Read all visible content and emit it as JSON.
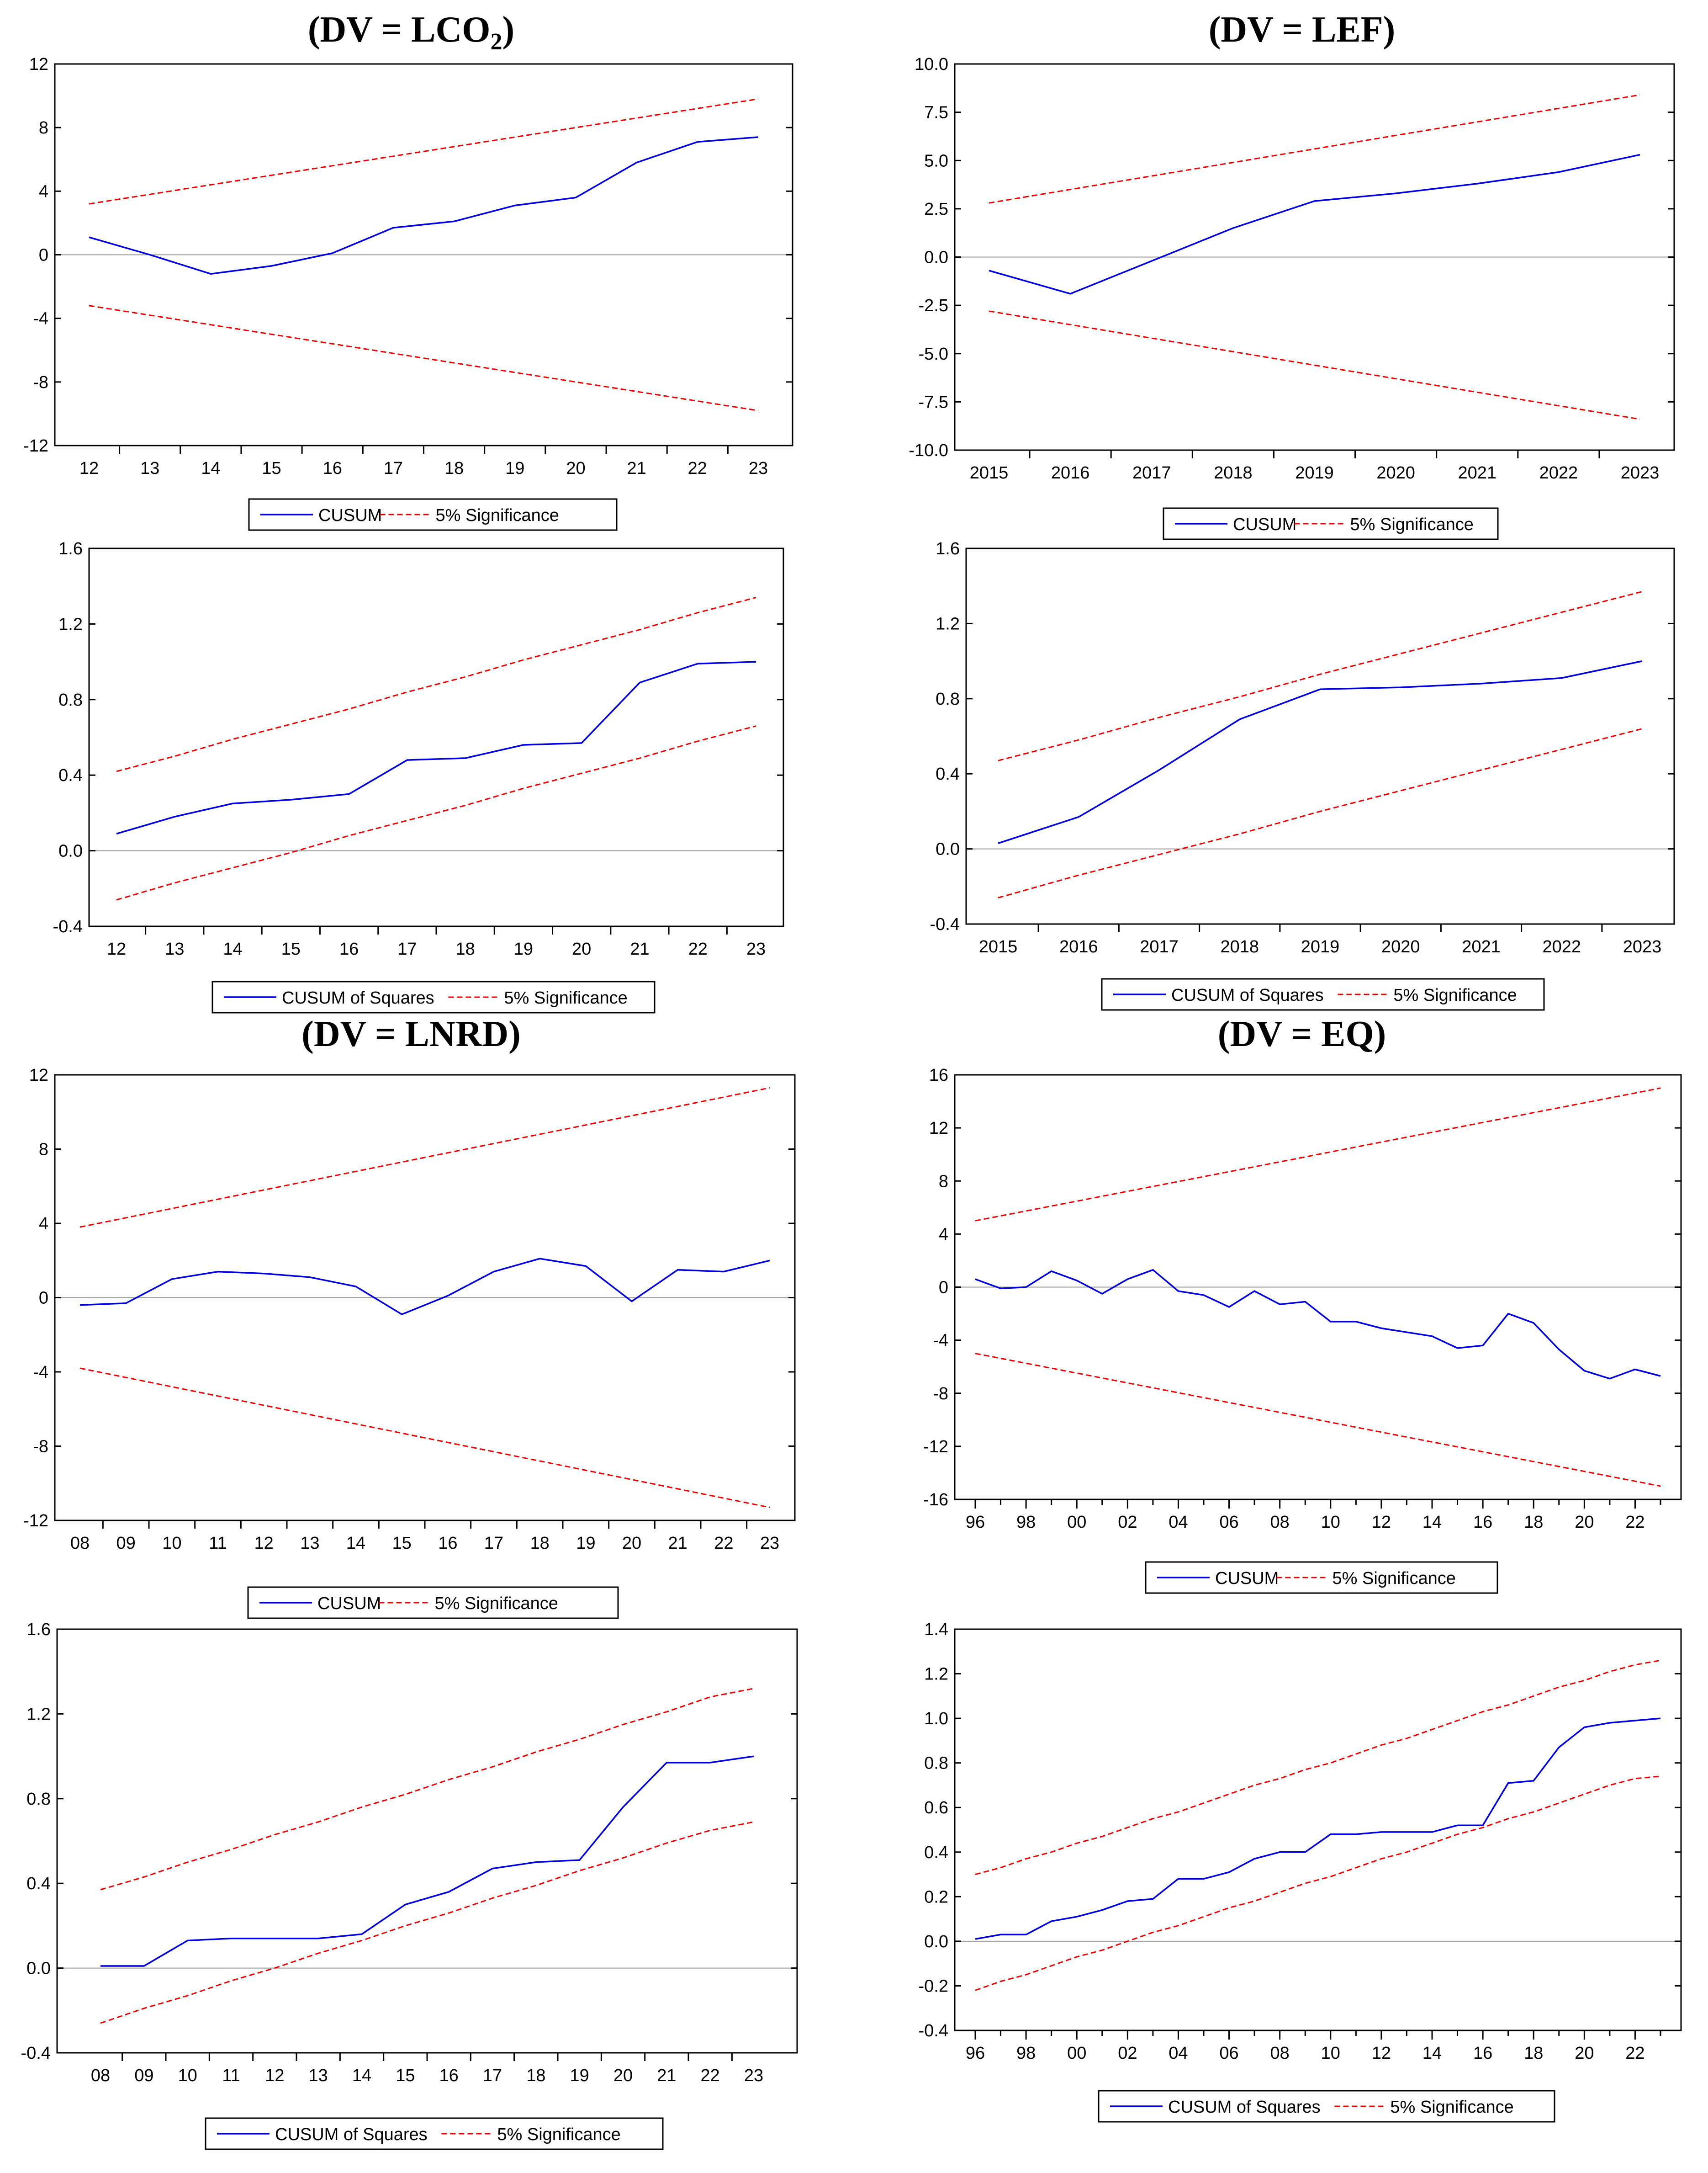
{
  "titles": {
    "t1_prefix": "(DV = LCO",
    "t1_sub": "2",
    "t1_suffix": ")",
    "t2": "(DV = LEF)",
    "t3": "(DV = LNRD)",
    "t4": "(DV = EQ)"
  },
  "colors": {
    "cusum": "#0000dd",
    "band": "#ee0000",
    "axis": "#000000",
    "zero": "#999999"
  },
  "chart_data": [
    {
      "id": "lco2-cusum",
      "type": "line",
      "title": "(DV = LCO2)",
      "categories": [
        "12",
        "13",
        "14",
        "15",
        "16",
        "17",
        "18",
        "19",
        "20",
        "21",
        "22",
        "23"
      ],
      "ylim": [
        -12,
        12
      ],
      "yticks": [
        "12",
        "8",
        "4",
        "0",
        "-4",
        "-8",
        "-12"
      ],
      "ytick_values": [
        12,
        8,
        4,
        0,
        -4,
        -8,
        -12
      ],
      "series": [
        {
          "name": "CUSUM",
          "values": [
            1.1,
            0.0,
            -1.2,
            -0.7,
            0.1,
            1.7,
            2.1,
            3.1,
            3.6,
            5.8,
            7.1,
            7.4
          ]
        },
        {
          "name": "5% Significance",
          "values": [
            3.2,
            3.8,
            4.4,
            5.0,
            5.6,
            6.2,
            6.8,
            7.4,
            8.0,
            8.6,
            9.2,
            9.8
          ]
        },
        {
          "name": "5% Significance",
          "values": [
            -3.2,
            -3.8,
            -4.4,
            -5.0,
            -5.6,
            -6.2,
            -6.8,
            -7.4,
            -8.0,
            -8.6,
            -9.2,
            -9.8
          ]
        }
      ],
      "legend": [
        "CUSUM",
        "5% Significance"
      ]
    },
    {
      "id": "lef-cusum",
      "type": "line",
      "title": "(DV = LEF)",
      "categories": [
        "2015",
        "2016",
        "2017",
        "2018",
        "2019",
        "2020",
        "2021",
        "2022",
        "2023"
      ],
      "ylim": [
        -10,
        10
      ],
      "yticks": [
        "10.0",
        "7.5",
        "5.0",
        "2.5",
        "0.0",
        "-2.5",
        "-5.0",
        "-7.5",
        "-10.0"
      ],
      "ytick_values": [
        10,
        7.5,
        5,
        2.5,
        0,
        -2.5,
        -5,
        -7.5,
        -10
      ],
      "series": [
        {
          "name": "CUSUM",
          "values": [
            -0.7,
            -1.9,
            -0.2,
            1.5,
            2.9,
            3.3,
            3.8,
            4.4,
            5.3
          ]
        },
        {
          "name": "5% Significance",
          "values": [
            2.8,
            3.5,
            4.2,
            4.9,
            5.6,
            6.3,
            7.0,
            7.7,
            8.4
          ]
        },
        {
          "name": "5% Significance",
          "values": [
            -2.8,
            -3.5,
            -4.2,
            -4.9,
            -5.6,
            -6.3,
            -7.0,
            -7.7,
            -8.4
          ]
        }
      ],
      "legend": [
        "CUSUM",
        "5% Significance"
      ]
    },
    {
      "id": "lco2-cusumsq",
      "type": "line",
      "categories": [
        "12",
        "13",
        "14",
        "15",
        "16",
        "17",
        "18",
        "19",
        "20",
        "21",
        "22",
        "23"
      ],
      "ylim": [
        -0.4,
        1.6
      ],
      "yticks": [
        "1.6",
        "1.2",
        "0.8",
        "0.4",
        "0.0",
        "-0.4"
      ],
      "ytick_values": [
        1.6,
        1.2,
        0.8,
        0.4,
        0,
        -0.4
      ],
      "series": [
        {
          "name": "CUSUM of Squares",
          "values": [
            0.09,
            0.18,
            0.25,
            0.27,
            0.3,
            0.48,
            0.49,
            0.56,
            0.57,
            0.89,
            0.99,
            1.0
          ]
        },
        {
          "name": "5% Significance",
          "values": [
            0.42,
            0.5,
            0.59,
            0.67,
            0.75,
            0.84,
            0.92,
            1.01,
            1.09,
            1.17,
            1.26,
            1.34
          ]
        },
        {
          "name": "5% Significance",
          "values": [
            -0.26,
            -0.17,
            -0.09,
            -0.01,
            0.08,
            0.16,
            0.24,
            0.33,
            0.41,
            0.49,
            0.58,
            0.66
          ]
        }
      ],
      "legend": [
        "CUSUM of Squares",
        "5% Significance"
      ]
    },
    {
      "id": "lef-cusumsq",
      "type": "line",
      "categories": [
        "2015",
        "2016",
        "2017",
        "2018",
        "2019",
        "2020",
        "2021",
        "2022",
        "2023"
      ],
      "ylim": [
        -0.4,
        1.6
      ],
      "yticks": [
        "1.6",
        "1.2",
        "0.8",
        "0.4",
        "0.0",
        "-0.4"
      ],
      "ytick_values": [
        1.6,
        1.2,
        0.8,
        0.4,
        0,
        -0.4
      ],
      "series": [
        {
          "name": "CUSUM of Squares",
          "values": [
            0.03,
            0.17,
            0.42,
            0.69,
            0.85,
            0.86,
            0.88,
            0.91,
            1.0
          ]
        },
        {
          "name": "5% Significance",
          "values": [
            0.47,
            0.58,
            0.7,
            0.81,
            0.93,
            1.04,
            1.15,
            1.26,
            1.37
          ]
        },
        {
          "name": "5% Significance",
          "values": [
            -0.26,
            -0.14,
            -0.03,
            0.08,
            0.2,
            0.31,
            0.42,
            0.53,
            0.64
          ]
        }
      ],
      "legend": [
        "CUSUM of Squares",
        "5% Significance"
      ]
    },
    {
      "id": "lnrd-cusum",
      "type": "line",
      "title": "(DV = LNRD)",
      "categories": [
        "08",
        "09",
        "10",
        "11",
        "12",
        "13",
        "14",
        "15",
        "16",
        "17",
        "18",
        "19",
        "20",
        "21",
        "22",
        "23"
      ],
      "ylim": [
        -12,
        12
      ],
      "yticks": [
        "12",
        "8",
        "4",
        "0",
        "-4",
        "-8",
        "-12"
      ],
      "ytick_values": [
        12,
        8,
        4,
        0,
        -4,
        -8,
        -12
      ],
      "series": [
        {
          "name": "CUSUM",
          "values": [
            -0.4,
            -0.3,
            1.0,
            1.4,
            1.3,
            1.1,
            0.6,
            -0.9,
            0.1,
            1.4,
            2.1,
            1.7,
            -0.2,
            1.5,
            1.4,
            2.0
          ]
        },
        {
          "name": "5% Significance",
          "values": [
            3.8,
            4.3,
            4.8,
            5.3,
            5.8,
            6.3,
            6.8,
            7.3,
            7.8,
            8.3,
            8.8,
            9.3,
            9.8,
            10.3,
            10.8,
            11.3
          ]
        },
        {
          "name": "5% Significance",
          "values": [
            -3.8,
            -4.3,
            -4.8,
            -5.3,
            -5.8,
            -6.3,
            -6.8,
            -7.3,
            -7.8,
            -8.3,
            -8.8,
            -9.3,
            -9.8,
            -10.3,
            -10.8,
            -11.3
          ]
        }
      ],
      "legend": [
        "CUSUM",
        "5% Significance"
      ]
    },
    {
      "id": "eq-cusum",
      "type": "line",
      "title": "(DV = EQ)",
      "x_start": 1996,
      "x_end": 2023,
      "xticks": [
        "96",
        "98",
        "00",
        "02",
        "04",
        "06",
        "08",
        "10",
        "12",
        "14",
        "16",
        "18",
        "20",
        "22"
      ],
      "xtick_years": [
        1996,
        1998,
        2000,
        2002,
        2004,
        2006,
        2008,
        2010,
        2012,
        2014,
        2016,
        2018,
        2020,
        2022
      ],
      "ylim": [
        -16,
        16
      ],
      "yticks": [
        "16",
        "12",
        "8",
        "4",
        "0",
        "-4",
        "-8",
        "-12",
        "-16"
      ],
      "ytick_values": [
        16,
        12,
        8,
        4,
        0,
        -4,
        -8,
        -12,
        -16
      ],
      "series": [
        {
          "name": "CUSUM",
          "values": [
            0.6,
            -0.1,
            0.0,
            1.2,
            0.5,
            -0.5,
            0.6,
            1.3,
            -0.3,
            -0.6,
            -1.5,
            -0.3,
            -1.3,
            -1.1,
            -2.6,
            -2.6,
            -3.1,
            -3.4,
            -3.7,
            -4.6,
            -4.4,
            -2.0,
            -2.7,
            -4.7,
            -6.3,
            -6.9,
            -6.2,
            -6.7
          ]
        },
        {
          "name": "5% Significance",
          "values": [
            5.0,
            5.37,
            5.74,
            6.11,
            6.48,
            6.85,
            7.22,
            7.59,
            7.96,
            8.33,
            8.7,
            9.07,
            9.44,
            9.81,
            10.19,
            10.56,
            10.93,
            11.3,
            11.67,
            12.04,
            12.41,
            12.78,
            13.15,
            13.52,
            13.89,
            14.26,
            14.63,
            15.0
          ]
        },
        {
          "name": "5% Significance",
          "values": [
            -5.0,
            -5.37,
            -5.74,
            -6.11,
            -6.48,
            -6.85,
            -7.22,
            -7.59,
            -7.96,
            -8.33,
            -8.7,
            -9.07,
            -9.44,
            -9.81,
            -10.19,
            -10.56,
            -10.93,
            -11.3,
            -11.67,
            -12.04,
            -12.41,
            -12.78,
            -13.15,
            -13.52,
            -13.89,
            -14.26,
            -14.63,
            -15.0
          ]
        }
      ],
      "legend": [
        "CUSUM",
        "5% Significance"
      ]
    },
    {
      "id": "lnrd-cusumsq",
      "type": "line",
      "categories": [
        "08",
        "09",
        "10",
        "11",
        "12",
        "13",
        "14",
        "15",
        "16",
        "17",
        "18",
        "19",
        "20",
        "21",
        "22",
        "23"
      ],
      "ylim": [
        -0.4,
        1.6
      ],
      "yticks": [
        "1.6",
        "1.2",
        "0.8",
        "0.4",
        "0.0",
        "-0.4"
      ],
      "ytick_values": [
        1.6,
        1.2,
        0.8,
        0.4,
        0,
        -0.4
      ],
      "series": [
        {
          "name": "CUSUM of Squares",
          "values": [
            0.01,
            0.01,
            0.13,
            0.14,
            0.14,
            0.14,
            0.16,
            0.3,
            0.36,
            0.47,
            0.5,
            0.51,
            0.76,
            0.97,
            0.97,
            1.0
          ]
        },
        {
          "name": "5% Significance",
          "values": [
            0.37,
            0.43,
            0.5,
            0.56,
            0.63,
            0.69,
            0.76,
            0.82,
            0.89,
            0.95,
            1.02,
            1.08,
            1.15,
            1.21,
            1.28,
            1.32
          ]
        },
        {
          "name": "5% Significance",
          "values": [
            -0.26,
            -0.19,
            -0.13,
            -0.06,
            0.0,
            0.07,
            0.13,
            0.2,
            0.26,
            0.33,
            0.39,
            0.46,
            0.52,
            0.59,
            0.65,
            0.69
          ]
        }
      ],
      "legend": [
        "CUSUM of Squares",
        "5% Significance"
      ]
    },
    {
      "id": "eq-cusumsq",
      "type": "line",
      "x_start": 1996,
      "x_end": 2023,
      "xticks": [
        "96",
        "98",
        "00",
        "02",
        "04",
        "06",
        "08",
        "10",
        "12",
        "14",
        "16",
        "18",
        "20",
        "22"
      ],
      "xtick_years": [
        1996,
        1998,
        2000,
        2002,
        2004,
        2006,
        2008,
        2010,
        2012,
        2014,
        2016,
        2018,
        2020,
        2022
      ],
      "ylim": [
        -0.4,
        1.4
      ],
      "yticks": [
        "1.4",
        "1.2",
        "1.0",
        "0.8",
        "0.6",
        "0.4",
        "0.2",
        "0.0",
        "-0.2",
        "-0.4"
      ],
      "ytick_values": [
        1.4,
        1.2,
        1.0,
        0.8,
        0.6,
        0.4,
        0.2,
        0,
        -0.2,
        -0.4
      ],
      "series": [
        {
          "name": "CUSUM of Squares",
          "values": [
            0.01,
            0.03,
            0.03,
            0.09,
            0.11,
            0.14,
            0.18,
            0.19,
            0.28,
            0.28,
            0.31,
            0.37,
            0.4,
            0.4,
            0.48,
            0.48,
            0.49,
            0.49,
            0.49,
            0.52,
            0.52,
            0.71,
            0.72,
            0.87,
            0.96,
            0.98,
            0.99,
            1.0
          ]
        },
        {
          "name": "5% Significance",
          "values": [
            0.3,
            0.33,
            0.37,
            0.4,
            0.44,
            0.47,
            0.51,
            0.55,
            0.58,
            0.62,
            0.66,
            0.7,
            0.73,
            0.77,
            0.8,
            0.84,
            0.88,
            0.91,
            0.95,
            0.99,
            1.03,
            1.06,
            1.1,
            1.14,
            1.17,
            1.21,
            1.24,
            1.26
          ]
        },
        {
          "name": "5% Significance",
          "values": [
            -0.22,
            -0.18,
            -0.15,
            -0.11,
            -0.07,
            -0.04,
            0.0,
            0.04,
            0.07,
            0.11,
            0.15,
            0.18,
            0.22,
            0.26,
            0.29,
            0.33,
            0.37,
            0.4,
            0.44,
            0.48,
            0.51,
            0.55,
            0.58,
            0.62,
            0.66,
            0.7,
            0.73,
            0.74
          ]
        }
      ],
      "legend": [
        "CUSUM of Squares",
        "5% Significance"
      ]
    }
  ]
}
